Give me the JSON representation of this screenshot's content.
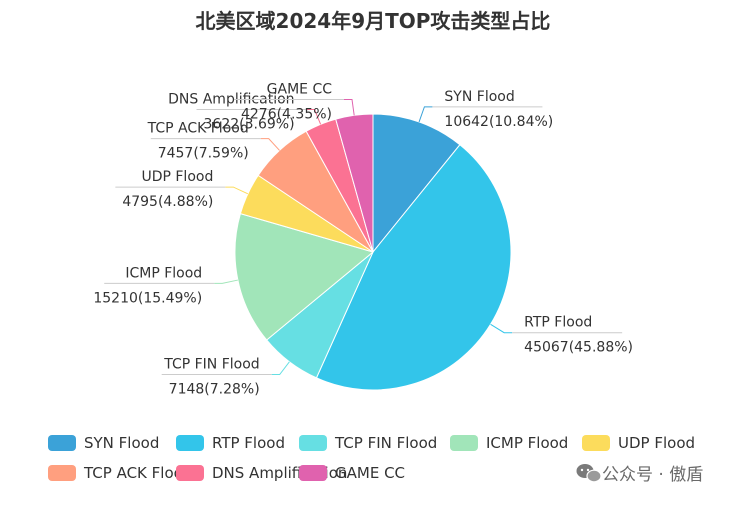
{
  "chart_data": {
    "type": "pie",
    "title": "北美区域2024年9月TOP攻击类型占比",
    "slices": [
      {
        "name": "SYN Flood",
        "value": 10642,
        "percent": "10.84%",
        "color": "#3ba2d8"
      },
      {
        "name": "RTP Flood",
        "value": 45067,
        "percent": "45.88%",
        "color": "#33c5ea"
      },
      {
        "name": "TCP FIN Flood",
        "value": 7148,
        "percent": "7.28%",
        "color": "#66dfe3"
      },
      {
        "name": "ICMP Flood",
        "value": 15210,
        "percent": "15.49%",
        "color": "#a1e5b9"
      },
      {
        "name": "UDP Flood",
        "value": 4795,
        "percent": "4.88%",
        "color": "#fcdc5c"
      },
      {
        "name": "TCP ACK Flood",
        "value": 7457,
        "percent": "7.59%",
        "color": "#ff9f7f"
      },
      {
        "name": "DNS Amplification",
        "value": 3622,
        "percent": "3.69%",
        "color": "#fb7293"
      },
      {
        "name": "GAME CC",
        "value": 4276,
        "percent": "4.35%",
        "color": "#e062ae"
      }
    ],
    "legend_position": "bottom"
  },
  "watermark": {
    "text": "公众号 · 傲盾",
    "icon": "wechat-icon"
  }
}
